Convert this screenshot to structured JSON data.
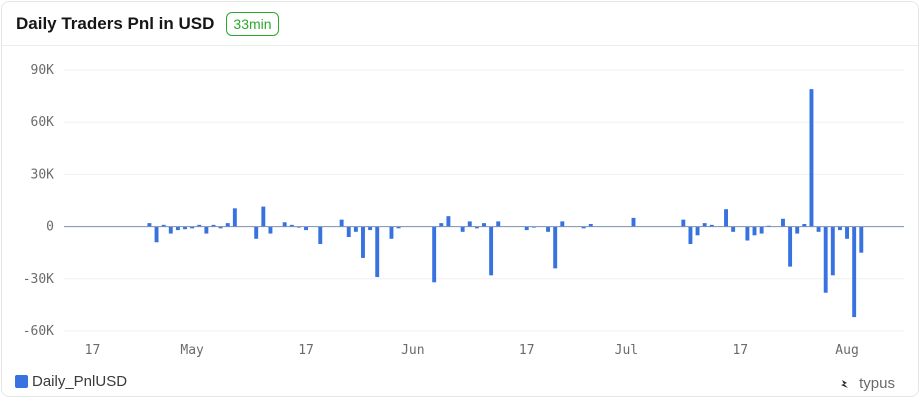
{
  "header": {
    "title": "Daily Traders Pnl in USD",
    "badge": "33min"
  },
  "legend": {
    "label": "Daily_PnlUSD"
  },
  "brand": {
    "name": "typus",
    "icon": "typus-logo-icon"
  },
  "colors": {
    "bar": "#3772e0",
    "badge": "#2ca82c",
    "zero_line": "#7a8fb5",
    "grid": "#f0f0f0"
  },
  "chart_data": {
    "type": "bar",
    "title": "Daily Traders Pnl in USD",
    "xlabel": "",
    "ylabel": "",
    "grid": true,
    "legend_position": "bottom-left",
    "x_tick_labels": [
      "17",
      "May",
      "17",
      "Jun",
      "17",
      "Jul",
      "17",
      "Aug"
    ],
    "y_tick_labels": [
      "90K",
      "60K",
      "30K",
      "0",
      "-30K",
      "-60K"
    ],
    "y_ticks": [
      90000,
      60000,
      30000,
      0,
      -30000,
      -60000
    ],
    "ylim": [
      -65000,
      92000
    ],
    "x_range": [
      "2024-04-13",
      "2024-08-09"
    ],
    "series": [
      {
        "name": "Daily_PnlUSD",
        "x": [
          "2024-04-25",
          "2024-04-26",
          "2024-04-27",
          "2024-04-28",
          "2024-04-29",
          "2024-04-30",
          "2024-05-01",
          "2024-05-02",
          "2024-05-03",
          "2024-05-04",
          "2024-05-05",
          "2024-05-06",
          "2024-05-07",
          "2024-05-10",
          "2024-05-11",
          "2024-05-12",
          "2024-05-14",
          "2024-05-15",
          "2024-05-16",
          "2024-05-17",
          "2024-05-19",
          "2024-05-22",
          "2024-05-23",
          "2024-05-24",
          "2024-05-25",
          "2024-05-26",
          "2024-05-27",
          "2024-05-29",
          "2024-05-30",
          "2024-06-04",
          "2024-06-05",
          "2024-06-06",
          "2024-06-08",
          "2024-06-09",
          "2024-06-10",
          "2024-06-11",
          "2024-06-12",
          "2024-06-13",
          "2024-06-17",
          "2024-06-18",
          "2024-06-20",
          "2024-06-21",
          "2024-06-22",
          "2024-06-25",
          "2024-06-26",
          "2024-07-02",
          "2024-07-09",
          "2024-07-10",
          "2024-07-11",
          "2024-07-12",
          "2024-07-13",
          "2024-07-15",
          "2024-07-16",
          "2024-07-18",
          "2024-07-19",
          "2024-07-20",
          "2024-07-21",
          "2024-07-23",
          "2024-07-24",
          "2024-07-25",
          "2024-07-26",
          "2024-07-27",
          "2024-07-28",
          "2024-07-29",
          "2024-07-30",
          "2024-07-31",
          "2024-08-01",
          "2024-08-02",
          "2024-08-03"
        ],
        "values": [
          2000,
          -9000,
          1000,
          -4000,
          -2000,
          -1500,
          -1000,
          1000,
          -4000,
          1000,
          -1000,
          2000,
          10500,
          -7000,
          11500,
          -4000,
          2500,
          1000,
          -500,
          -2000,
          -10000,
          4000,
          -6000,
          -3000,
          -18000,
          -2000,
          -29000,
          -7000,
          -1000,
          -32000,
          2000,
          6000,
          -3000,
          3000,
          -1000,
          2000,
          -28000,
          3000,
          -2000,
          -500,
          -3000,
          -24000,
          3000,
          -1000,
          1500,
          5000,
          4000,
          -10000,
          -5000,
          2000,
          1000,
          10000,
          -3000,
          -8000,
          -5000,
          -4000,
          500,
          4500,
          -23000,
          -4000,
          1500,
          79000,
          -3000,
          -38000,
          -28000,
          -2000,
          -7000,
          -52000,
          -15000
        ]
      }
    ]
  }
}
